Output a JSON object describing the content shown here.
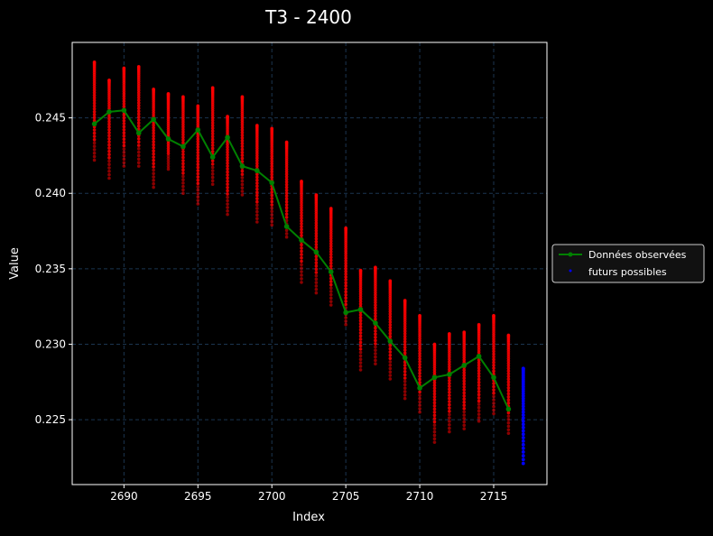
{
  "chart_data": {
    "type": "scatter",
    "title": "T3 - 2400",
    "xlabel": "Index",
    "ylabel": "Value",
    "xlim": [
      2686.5,
      2718.6
    ],
    "ylim": [
      0.2207,
      0.25
    ],
    "xticks": [
      2690,
      2695,
      2700,
      2705,
      2710,
      2715
    ],
    "yticks": [
      0.225,
      0.23,
      0.235,
      0.24,
      0.245
    ],
    "grid": true,
    "legend_placement": "right",
    "colors": {
      "observed": "#008000",
      "possible": "#ff0000",
      "futures": "#0000ff",
      "background": "#000000",
      "grid": "#1b3550"
    },
    "observed": {
      "name": "Données observées",
      "x": [
        2688,
        2689,
        2690,
        2691,
        2692,
        2693,
        2694,
        2695,
        2696,
        2697,
        2698,
        2699,
        2700,
        2701,
        2702,
        2703,
        2704,
        2705,
        2706,
        2707,
        2708,
        2709,
        2710,
        2711,
        2712,
        2713,
        2714,
        2715,
        2716
      ],
      "y": [
        0.2446,
        0.2454,
        0.2455,
        0.244,
        0.2449,
        0.2436,
        0.2431,
        0.2442,
        0.2424,
        0.2437,
        0.2418,
        0.2415,
        0.2407,
        0.2378,
        0.2369,
        0.2361,
        0.2348,
        0.2321,
        0.2323,
        0.2314,
        0.2302,
        0.2291,
        0.2271,
        0.2278,
        0.228,
        0.2286,
        0.2292,
        0.2278,
        0.2257
      ]
    },
    "possible_ranges": {
      "x": [
        2688,
        2689,
        2690,
        2691,
        2692,
        2693,
        2694,
        2695,
        2696,
        2697,
        2698,
        2699,
        2700,
        2701,
        2702,
        2703,
        2704,
        2705,
        2706,
        2707,
        2708,
        2709,
        2710,
        2711,
        2712,
        2713,
        2714,
        2715,
        2716
      ],
      "max": [
        0.2487,
        0.2475,
        0.2483,
        0.2484,
        0.2469,
        0.2466,
        0.2464,
        0.2458,
        0.247,
        0.2451,
        0.2464,
        0.2445,
        0.2443,
        0.2434,
        0.2408,
        0.2399,
        0.239,
        0.2377,
        0.2349,
        0.2351,
        0.2342,
        0.2329,
        0.2319,
        0.23,
        0.2307,
        0.2308,
        0.2313,
        0.2319,
        0.2306
      ],
      "min": [
        0.2422,
        0.241,
        0.2418,
        0.2418,
        0.2404,
        0.2416,
        0.24,
        0.2393,
        0.2406,
        0.2386,
        0.2399,
        0.2381,
        0.2379,
        0.2371,
        0.2341,
        0.2334,
        0.2326,
        0.2313,
        0.2283,
        0.2287,
        0.2277,
        0.2264,
        0.2255,
        0.2235,
        0.2242,
        0.2244,
        0.2249,
        0.2254,
        0.2241
      ]
    },
    "futures": {
      "name": "futurs possibles",
      "x": 2717,
      "max": 0.2284,
      "min": 0.2221
    }
  }
}
